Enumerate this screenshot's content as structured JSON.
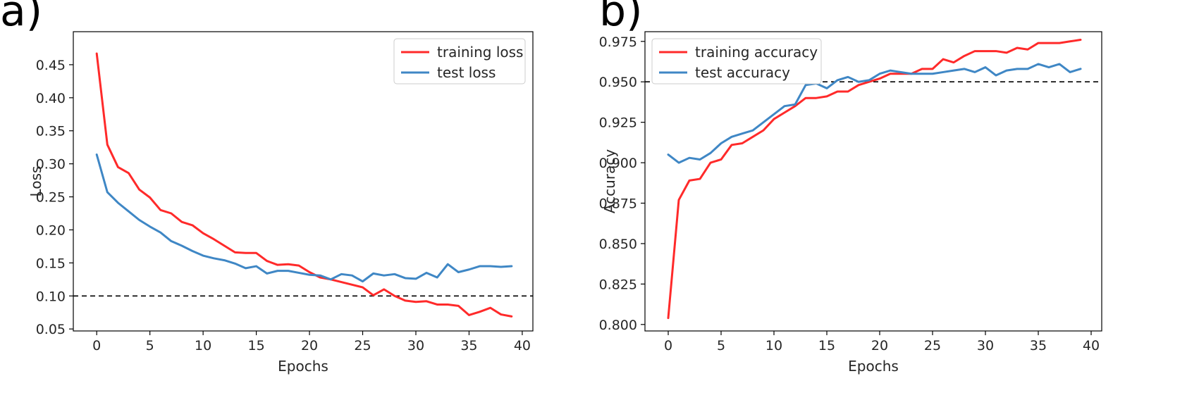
{
  "panels": {
    "a": {
      "label": "a)"
    },
    "b": {
      "label": "b)"
    }
  },
  "colors": {
    "training": "#ff2a2a",
    "test": "#3f87c5",
    "threshold": "#000000"
  },
  "chart_data": [
    {
      "type": "line",
      "xlabel": "Epochs",
      "ylabel": "Loss",
      "xlim": [
        -2.2,
        41
      ],
      "ylim": [
        0.047,
        0.5
      ],
      "xticks": [
        "0",
        "5",
        "10",
        "15",
        "20",
        "25",
        "30",
        "35",
        "40"
      ],
      "yticks": [
        "0.05",
        "0.10",
        "0.15",
        "0.20",
        "0.25",
        "0.30",
        "0.35",
        "0.40",
        "0.45"
      ],
      "threshold": 0.1,
      "grid": false,
      "legend_position": "top-right",
      "x": [
        0,
        1,
        2,
        3,
        4,
        5,
        6,
        7,
        8,
        9,
        10,
        11,
        12,
        13,
        14,
        15,
        16,
        17,
        18,
        19,
        20,
        21,
        22,
        23,
        24,
        25,
        26,
        27,
        28,
        29,
        30,
        31,
        32,
        33,
        34,
        35,
        36,
        37,
        38,
        39
      ],
      "series": [
        {
          "name": "training loss",
          "values": [
            0.467,
            0.329,
            0.295,
            0.286,
            0.261,
            0.249,
            0.23,
            0.225,
            0.212,
            0.207,
            0.195,
            0.186,
            0.176,
            0.166,
            0.165,
            0.165,
            0.153,
            0.147,
            0.148,
            0.146,
            0.136,
            0.128,
            0.125,
            0.121,
            0.117,
            0.113,
            0.101,
            0.11,
            0.1,
            0.093,
            0.091,
            0.092,
            0.087,
            0.087,
            0.085,
            0.071,
            0.076,
            0.082,
            0.072,
            0.069
          ]
        },
        {
          "name": "test loss",
          "values": [
            0.314,
            0.257,
            0.241,
            0.228,
            0.215,
            0.205,
            0.196,
            0.183,
            0.176,
            0.168,
            0.161,
            0.157,
            0.154,
            0.149,
            0.142,
            0.145,
            0.134,
            0.138,
            0.138,
            0.135,
            0.132,
            0.131,
            0.125,
            0.133,
            0.131,
            0.122,
            0.134,
            0.131,
            0.133,
            0.127,
            0.126,
            0.135,
            0.128,
            0.148,
            0.136,
            0.14,
            0.145,
            0.145,
            0.144,
            0.145
          ]
        }
      ]
    },
    {
      "type": "line",
      "xlabel": "Epochs",
      "ylabel": "Accuracy",
      "xlim": [
        -2.2,
        41
      ],
      "ylim": [
        0.796,
        0.981
      ],
      "xticks": [
        "0",
        "5",
        "10",
        "15",
        "20",
        "25",
        "30",
        "35",
        "40"
      ],
      "yticks": [
        "0.800",
        "0.825",
        "0.850",
        "0.875",
        "0.900",
        "0.925",
        "0.950",
        "0.975"
      ],
      "threshold": 0.95,
      "grid": false,
      "legend_position": "top-left",
      "x": [
        0,
        1,
        2,
        3,
        4,
        5,
        6,
        7,
        8,
        9,
        10,
        11,
        12,
        13,
        14,
        15,
        16,
        17,
        18,
        19,
        20,
        21,
        22,
        23,
        24,
        25,
        26,
        27,
        28,
        29,
        30,
        31,
        32,
        33,
        34,
        35,
        36,
        37,
        38,
        39
      ],
      "series": [
        {
          "name": "training accuracy",
          "values": [
            0.804,
            0.877,
            0.889,
            0.89,
            0.9,
            0.902,
            0.911,
            0.912,
            0.916,
            0.92,
            0.927,
            0.931,
            0.935,
            0.94,
            0.94,
            0.941,
            0.944,
            0.944,
            0.948,
            0.95,
            0.952,
            0.955,
            0.955,
            0.955,
            0.958,
            0.958,
            0.964,
            0.962,
            0.966,
            0.969,
            0.969,
            0.969,
            0.968,
            0.971,
            0.97,
            0.974,
            0.974,
            0.974,
            0.975,
            0.976
          ]
        },
        {
          "name": "test accuracy",
          "values": [
            0.905,
            0.9,
            0.903,
            0.902,
            0.906,
            0.912,
            0.916,
            0.918,
            0.92,
            0.925,
            0.93,
            0.935,
            0.936,
            0.948,
            0.949,
            0.946,
            0.951,
            0.953,
            0.95,
            0.951,
            0.955,
            0.957,
            0.956,
            0.955,
            0.955,
            0.955,
            0.956,
            0.957,
            0.958,
            0.956,
            0.959,
            0.954,
            0.957,
            0.958,
            0.958,
            0.961,
            0.959,
            0.961,
            0.956,
            0.958
          ]
        }
      ]
    }
  ]
}
